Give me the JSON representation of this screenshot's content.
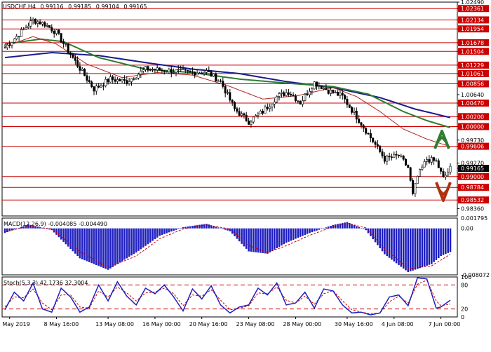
{
  "header": {
    "symbol": "USDCHF,H4",
    "open": "0.99116",
    "high": "0.99185",
    "low": "0.99104",
    "close": "0.99165"
  },
  "colors": {
    "border": "#000000",
    "grid_red": "#cc0000",
    "label_red_bg": "#cc0000",
    "ma_blue": "#1a1a8c",
    "ma_green": "#2e7d32",
    "ma_red": "#b22222",
    "candle": "#000000",
    "macd_bar": "#1f1fbf",
    "macd_signal": "#cc0000",
    "stoch_main": "#1f1fbf",
    "stoch_signal": "#cc0000",
    "arrow_up": "#2e7d32",
    "arrow_down": "#b03010",
    "current_bg": "#000000"
  },
  "chart_data": [
    {
      "type": "candlestick",
      "name": "price",
      "ylim": [
        0.98212,
        1.0249
      ],
      "price_axis_labels": [
        "1.02490",
        "1.02361",
        "1.02134",
        "1.01954",
        "1.01678",
        "1.01504",
        "1.01229",
        "1.01061",
        "1.00856",
        "1.00640",
        "1.00470",
        "1.00200",
        "1.00000",
        "0.99730",
        "0.99606",
        "0.99270",
        "0.99165",
        "0.99000",
        "0.98784",
        "0.98532",
        "0.98360"
      ],
      "levels": [
        "1.02361",
        "1.02134",
        "1.01954",
        "1.01678",
        "1.01504",
        "1.01229",
        "1.01061",
        "1.00856",
        "1.00470",
        "1.00200",
        "1.00000",
        "0.99606",
        "0.99000",
        "0.98784",
        "0.98532"
      ],
      "current_price": "0.99165",
      "x_labels": [
        "1 May 2019",
        "8 May 16:00",
        "13 May 08:00",
        "16 May 00:00",
        "20 May 16:00",
        "23 May 08:00",
        "28 May 00:00",
        "30 May 16:00",
        "4 Jun 08:00",
        "7 Jun 00:00"
      ],
      "close_anchors": [
        [
          0,
          1.0158
        ],
        [
          6,
          1.0185
        ],
        [
          12,
          1.0213
        ],
        [
          17,
          1.0205
        ],
        [
          22,
          1.0188
        ],
        [
          30,
          1.013
        ],
        [
          38,
          1.0075
        ],
        [
          45,
          1.0095
        ],
        [
          52,
          1.009
        ],
        [
          60,
          1.0115
        ],
        [
          70,
          1.0112
        ],
        [
          78,
          1.0108
        ],
        [
          86,
          1.011
        ],
        [
          92,
          1.009
        ],
        [
          98,
          1.0035
        ],
        [
          104,
          1.001
        ],
        [
          110,
          1.003
        ],
        [
          116,
          1.006
        ],
        [
          121,
          1.007
        ],
        [
          126,
          1.0048
        ],
        [
          132,
          1.0088
        ],
        [
          138,
          1.0072
        ],
        [
          144,
          1.006
        ],
        [
          150,
          1.002
        ],
        [
          156,
          0.9978
        ],
        [
          162,
          0.9935
        ],
        [
          168,
          0.9942
        ],
        [
          172,
          0.9918
        ],
        [
          174,
          0.9862
        ],
        [
          176,
          0.99
        ],
        [
          180,
          0.9935
        ],
        [
          184,
          0.993
        ],
        [
          187,
          0.9896
        ],
        [
          190,
          0.9916
        ]
      ],
      "overlays": [
        {
          "name": "MA slow",
          "color": "ma_blue",
          "anchors": [
            [
              0,
              1.0138
            ],
            [
              20,
              1.0148
            ],
            [
              40,
              1.0142
            ],
            [
              60,
              1.0128
            ],
            [
              80,
              1.0115
            ],
            [
              100,
              1.0106
            ],
            [
              120,
              1.009
            ],
            [
              140,
              1.0078
            ],
            [
              160,
              1.0058
            ],
            [
              175,
              1.0035
            ],
            [
              190,
              1.0018
            ]
          ]
        },
        {
          "name": "MA mid",
          "color": "ma_green",
          "anchors": [
            [
              0,
              1.0165
            ],
            [
              15,
              1.0175
            ],
            [
              25,
              1.017
            ],
            [
              40,
              1.0138
            ],
            [
              60,
              1.0115
            ],
            [
              80,
              1.0108
            ],
            [
              100,
              1.0095
            ],
            [
              120,
              1.0087
            ],
            [
              140,
              1.008
            ],
            [
              155,
              1.0065
            ],
            [
              170,
              1.003
            ],
            [
              180,
              1.0012
            ],
            [
              190,
              0.9998
            ]
          ]
        },
        {
          "name": "MA fast",
          "color": "ma_red",
          "anchors": [
            [
              0,
              1.016
            ],
            [
              12,
              1.018
            ],
            [
              22,
              1.0165
            ],
            [
              35,
              1.0125
            ],
            [
              50,
              1.0098
            ],
            [
              65,
              1.0108
            ],
            [
              80,
              1.0103
            ],
            [
              95,
              1.0082
            ],
            [
              110,
              1.0055
            ],
            [
              125,
              1.0062
            ],
            [
              140,
              1.0078
            ],
            [
              150,
              1.006
            ],
            [
              160,
              1.003
            ],
            [
              170,
              0.9995
            ],
            [
              180,
              0.9975
            ],
            [
              190,
              0.996
            ]
          ]
        }
      ]
    },
    {
      "type": "bar",
      "name": "macd",
      "title": "MACD(12,26,9) -0.004085 -0.004490",
      "ylim": [
        -0.008072,
        0.001795
      ],
      "axis_labels": [
        "0.001795",
        "0.00",
        "-0.008072"
      ],
      "histogram_anchors": [
        [
          0,
          -0.0008
        ],
        [
          10,
          0.0007
        ],
        [
          20,
          -0.0003
        ],
        [
          32,
          -0.0052
        ],
        [
          44,
          -0.0072
        ],
        [
          56,
          -0.0042
        ],
        [
          66,
          -0.0013
        ],
        [
          76,
          0.0002
        ],
        [
          86,
          0.0008
        ],
        [
          96,
          -0.0005
        ],
        [
          104,
          -0.004
        ],
        [
          112,
          -0.0044
        ],
        [
          120,
          -0.0025
        ],
        [
          130,
          -0.0008
        ],
        [
          140,
          0.0006
        ],
        [
          146,
          0.0011
        ],
        [
          154,
          -0.0003
        ],
        [
          162,
          -0.0045
        ],
        [
          172,
          -0.0076
        ],
        [
          182,
          -0.0062
        ],
        [
          186,
          -0.0048
        ],
        [
          190,
          -0.0041
        ]
      ],
      "signal_anchors": [
        [
          0,
          -0.0006
        ],
        [
          10,
          0.0004
        ],
        [
          20,
          -0.0001
        ],
        [
          32,
          -0.004
        ],
        [
          44,
          -0.0068
        ],
        [
          56,
          -0.0048
        ],
        [
          66,
          -0.0018
        ],
        [
          76,
          -0.0001
        ],
        [
          86,
          0.0006
        ],
        [
          96,
          -0.0001
        ],
        [
          104,
          -0.003
        ],
        [
          112,
          -0.0042
        ],
        [
          120,
          -0.003
        ],
        [
          130,
          -0.0012
        ],
        [
          140,
          0.0003
        ],
        [
          146,
          0.0009
        ],
        [
          154,
          0.0001
        ],
        [
          162,
          -0.0035
        ],
        [
          172,
          -0.007
        ],
        [
          182,
          -0.0065
        ],
        [
          190,
          -0.0045
        ]
      ]
    },
    {
      "type": "line",
      "name": "stochastic",
      "title": "Stoch(5,3,3) 42.1736 32.3004",
      "ylim": [
        0,
        100
      ],
      "axis_labels": [
        "100",
        "80",
        "20",
        "0"
      ],
      "levels": [
        80,
        20
      ],
      "main_anchors": [
        [
          0,
          18
        ],
        [
          4,
          62
        ],
        [
          8,
          40
        ],
        [
          12,
          85
        ],
        [
          16,
          20
        ],
        [
          20,
          12
        ],
        [
          24,
          72
        ],
        [
          28,
          50
        ],
        [
          32,
          12
        ],
        [
          36,
          25
        ],
        [
          40,
          80
        ],
        [
          44,
          40
        ],
        [
          48,
          88
        ],
        [
          52,
          52
        ],
        [
          56,
          30
        ],
        [
          60,
          72
        ],
        [
          64,
          58
        ],
        [
          68,
          80
        ],
        [
          72,
          50
        ],
        [
          76,
          15
        ],
        [
          80,
          70
        ],
        [
          84,
          45
        ],
        [
          88,
          78
        ],
        [
          92,
          30
        ],
        [
          96,
          10
        ],
        [
          100,
          25
        ],
        [
          104,
          30
        ],
        [
          108,
          72
        ],
        [
          112,
          55
        ],
        [
          116,
          85
        ],
        [
          120,
          30
        ],
        [
          124,
          35
        ],
        [
          128,
          62
        ],
        [
          132,
          22
        ],
        [
          136,
          70
        ],
        [
          140,
          65
        ],
        [
          144,
          30
        ],
        [
          148,
          10
        ],
        [
          152,
          12
        ],
        [
          156,
          5
        ],
        [
          160,
          10
        ],
        [
          164,
          50
        ],
        [
          168,
          55
        ],
        [
          172,
          28
        ],
        [
          176,
          98
        ],
        [
          180,
          95
        ],
        [
          184,
          22
        ],
        [
          186,
          25
        ],
        [
          190,
          42
        ]
      ],
      "signal_anchors": [
        [
          0,
          25
        ],
        [
          4,
          50
        ],
        [
          8,
          48
        ],
        [
          12,
          70
        ],
        [
          16,
          35
        ],
        [
          20,
          18
        ],
        [
          24,
          55
        ],
        [
          28,
          55
        ],
        [
          32,
          25
        ],
        [
          36,
          22
        ],
        [
          40,
          65
        ],
        [
          44,
          50
        ],
        [
          48,
          75
        ],
        [
          52,
          60
        ],
        [
          56,
          40
        ],
        [
          60,
          60
        ],
        [
          64,
          62
        ],
        [
          68,
          72
        ],
        [
          72,
          58
        ],
        [
          76,
          28
        ],
        [
          80,
          55
        ],
        [
          84,
          52
        ],
        [
          88,
          68
        ],
        [
          92,
          42
        ],
        [
          96,
          18
        ],
        [
          100,
          22
        ],
        [
          104,
          28
        ],
        [
          108,
          60
        ],
        [
          112,
          58
        ],
        [
          116,
          75
        ],
        [
          120,
          42
        ],
        [
          124,
          35
        ],
        [
          128,
          52
        ],
        [
          132,
          32
        ],
        [
          136,
          58
        ],
        [
          140,
          66
        ],
        [
          144,
          40
        ],
        [
          148,
          18
        ],
        [
          152,
          12
        ],
        [
          156,
          8
        ],
        [
          160,
          10
        ],
        [
          164,
          38
        ],
        [
          168,
          52
        ],
        [
          172,
          35
        ],
        [
          176,
          82
        ],
        [
          180,
          92
        ],
        [
          184,
          40
        ],
        [
          186,
          28
        ],
        [
          190,
          32
        ]
      ]
    }
  ]
}
